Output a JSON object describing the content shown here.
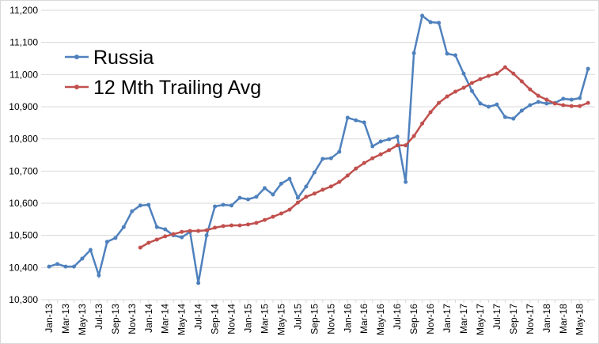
{
  "chart_data": {
    "type": "line",
    "categories": [
      "Jan-13",
      null,
      "Mar-13",
      null,
      "May-13",
      null,
      "Jul-13",
      null,
      "Sep-13",
      null,
      "Nov-13",
      null,
      "Jan-14",
      null,
      "Mar-14",
      null,
      "May-14",
      null,
      "Jul-14",
      null,
      "Sep-14",
      null,
      "Nov-14",
      null,
      "Jan-15",
      null,
      "Mar-15",
      null,
      "May-15",
      null,
      "Jul-15",
      null,
      "Sep-15",
      null,
      "Nov-15",
      null,
      "Jan-16",
      null,
      "Mar-16",
      null,
      "May-16",
      null,
      "Jul-16",
      null,
      "Sep-16",
      null,
      "Nov-16",
      null,
      "Jan-17",
      null,
      "Mar-17",
      null,
      "May-17",
      null,
      "Jul-17",
      null,
      "Sep-17",
      null,
      "Nov-17",
      null,
      "Jan-18",
      null,
      "Mar-18",
      null,
      "May-18",
      null
    ],
    "series": [
      {
        "name": "Russia",
        "color": "#4f81bd",
        "values": [
          10403,
          10411,
          10403,
          10403,
          10428,
          10455,
          10376,
          10480,
          10492,
          10526,
          10575,
          10593,
          10595,
          10526,
          10519,
          10500,
          10494,
          10511,
          10352,
          10500,
          10590,
          10595,
          10593,
          10617,
          10612,
          10620,
          10647,
          10627,
          10661,
          10676,
          10617,
          10652,
          10696,
          10738,
          10740,
          10760,
          10866,
          10858,
          10851,
          10777,
          10792,
          10799,
          10807,
          10666,
          11067,
          11183,
          11163,
          11161,
          11065,
          11060,
          11003,
          10949,
          10910,
          10900,
          10907,
          10868,
          10863,
          10888,
          10905,
          10915,
          10910,
          10912,
          10925,
          10922,
          10927,
          11018
        ]
      },
      {
        "name": "12 Mth Trailing Avg",
        "color": "#c0504d",
        "values": [
          null,
          null,
          null,
          null,
          null,
          null,
          null,
          null,
          null,
          null,
          null,
          10462,
          10477,
          10487,
          10497,
          10504,
          10511,
          10514,
          10514,
          10516,
          10524,
          10529,
          10531,
          10531,
          10534,
          10539,
          10548,
          10558,
          10568,
          10580,
          10602,
          10620,
          10630,
          10642,
          10652,
          10666,
          10686,
          10708,
          10725,
          10740,
          10752,
          10765,
          10780,
          10780,
          10809,
          10848,
          10883,
          10912,
          10932,
          10947,
          10959,
          10974,
          10986,
          10996,
          11003,
          11023,
          11003,
          10979,
          10954,
          10934,
          10922,
          10910,
          10905,
          10902,
          10902,
          10912
        ]
      }
    ],
    "ylim": [
      10300,
      11200
    ],
    "yticks": [
      {
        "value": 10300,
        "label": "10,300"
      },
      {
        "value": 10400,
        "label": "10,400"
      },
      {
        "value": 10500,
        "label": "10,500"
      },
      {
        "value": 10600,
        "label": "10,600"
      },
      {
        "value": 10700,
        "label": "10,700"
      },
      {
        "value": 10800,
        "label": "10,800"
      },
      {
        "value": 10900,
        "label": "10,900"
      },
      {
        "value": 11000,
        "label": "11,000"
      },
      {
        "value": 11100,
        "label": "11,100"
      },
      {
        "value": 11200,
        "label": "11,200"
      }
    ],
    "grid": true,
    "legend": "upper left"
  }
}
